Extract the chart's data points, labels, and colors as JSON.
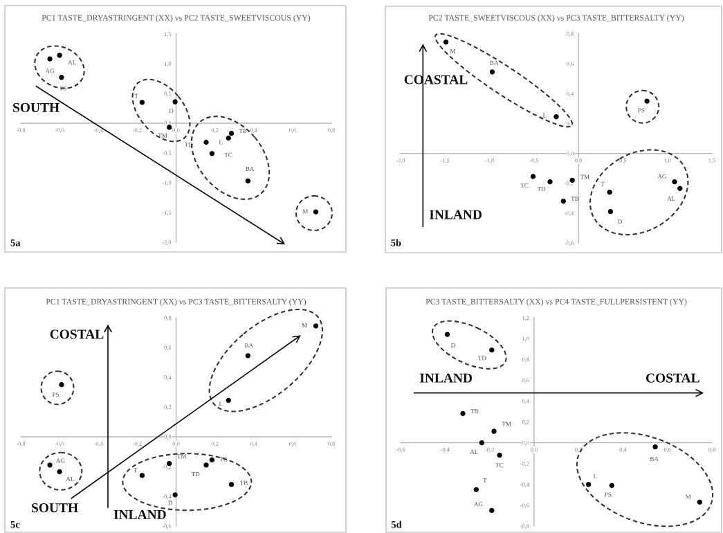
{
  "chart_data": [
    {
      "type": "scatter",
      "title": "PC1 TASTE_DRYASTRINGENT (XX) vs PC2 TASTE_SWEETVISCOUS (YY)",
      "marker": "circle",
      "xlim": [
        -0.8,
        0.8
      ],
      "xticks": [
        {
          "value": -0.8,
          "label": "-0,8"
        },
        {
          "value": -0.6,
          "label": "-0,6"
        },
        {
          "value": -0.4,
          "label": "-0,4"
        },
        {
          "value": -0.2,
          "label": "-0,2"
        },
        {
          "value": 0,
          "label": "0,0"
        },
        {
          "value": 0.2,
          "label": "0,2"
        },
        {
          "value": 0.4,
          "label": "0,4"
        },
        {
          "value": 0.6,
          "label": "0,6"
        },
        {
          "value": 0.8,
          "label": "0,8"
        }
      ],
      "ylim": [
        -2.0,
        1.5
      ],
      "yticks": [
        {
          "value": -2.0,
          "label": "-2,0"
        },
        {
          "value": -1.5,
          "label": "-1,5"
        },
        {
          "value": -1.0,
          "label": "-1,0"
        },
        {
          "value": -0.5,
          "label": "-0,5"
        },
        {
          "value": 0,
          "label": "0,0"
        },
        {
          "value": 0.5,
          "label": "0,5"
        },
        {
          "value": 1.0,
          "label": "1,0"
        },
        {
          "value": 1.5,
          "label": "1,5"
        }
      ],
      "series": [
        {
          "color": "#000000",
          "x": [
            -0.65,
            -0.6,
            -0.59,
            -0.175,
            -0.005,
            -0.035,
            0.285,
            0.27,
            0.155,
            0.185,
            0.37,
            0.72
          ],
          "values": [
            1.08,
            1.14,
            0.77,
            0.35,
            0.36,
            -0.07,
            -0.17,
            -0.25,
            -0.32,
            -0.51,
            -0.97,
            -1.49
          ]
        }
      ],
      "annotations": [
        {
          "text": "AG",
          "x": -0.65,
          "y": 1.08
        },
        {
          "text": "AL",
          "x": -0.6,
          "y": 1.14
        },
        {
          "text": "PS",
          "x": -0.59,
          "y": 0.77
        },
        {
          "text": "T",
          "x": -0.175,
          "y": 0.35
        },
        {
          "text": "D",
          "x": -0.005,
          "y": 0.36
        },
        {
          "text": "TM",
          "x": -0.035,
          "y": -0.07
        },
        {
          "text": "TB",
          "x": 0.285,
          "y": -0.17
        },
        {
          "text": "L",
          "x": 0.27,
          "y": -0.25
        },
        {
          "text": "TD",
          "x": 0.155,
          "y": -0.32
        },
        {
          "text": "TC",
          "x": 0.185,
          "y": -0.51
        },
        {
          "text": "BA",
          "x": 0.37,
          "y": -0.97
        },
        {
          "text": "M",
          "x": 0.72,
          "y": -1.49
        },
        "SOUTH",
        "5a"
      ]
    },
    {
      "type": "scatter",
      "title": "PC2 TASTE_SWEETVISCOUS (XX) vs PC3 TASTE_BITTERSALTY (YY)",
      "marker": "circle",
      "xlim": [
        -2.0,
        1.5
      ],
      "xticks": [
        {
          "value": -2.0,
          "label": "-2,0"
        },
        {
          "value": -1.5,
          "label": "-1,5"
        },
        {
          "value": -1.0,
          "label": "-1,0"
        },
        {
          "value": -0.5,
          "label": "-0,5"
        },
        {
          "value": 0,
          "label": "0,0"
        },
        {
          "value": 0.5,
          "label": "0,5"
        },
        {
          "value": 1.0,
          "label": "1,0"
        },
        {
          "value": 1.5,
          "label": "1,5"
        }
      ],
      "ylim": [
        -0.6,
        0.8
      ],
      "yticks": [
        {
          "value": -0.6,
          "label": "-0,6"
        },
        {
          "value": -0.4,
          "label": "-0,4"
        },
        {
          "value": -0.2,
          "label": "-0,2"
        },
        {
          "value": 0,
          "label": "0,0"
        },
        {
          "value": 0.2,
          "label": "0,2"
        },
        {
          "value": 0.4,
          "label": "0,4"
        },
        {
          "value": 0.6,
          "label": "0,6"
        },
        {
          "value": 0.8,
          "label": "0,8"
        }
      ],
      "series": [
        {
          "color": "#000000",
          "x": [
            1.08,
            1.14,
            0.77,
            0.35,
            0.36,
            -0.07,
            -0.17,
            -0.25,
            -0.32,
            -0.51,
            -0.97,
            -1.49
          ],
          "values": [
            -0.19,
            -0.235,
            0.35,
            -0.26,
            -0.39,
            -0.18,
            -0.32,
            0.245,
            -0.19,
            -0.155,
            0.545,
            0.745
          ]
        }
      ],
      "annotations": [
        {
          "text": "AG",
          "x": 1.08,
          "y": -0.19
        },
        {
          "text": "AL",
          "x": 1.14,
          "y": -0.235
        },
        {
          "text": "PS",
          "x": 0.77,
          "y": 0.35
        },
        {
          "text": "T",
          "x": 0.35,
          "y": -0.26
        },
        {
          "text": "D",
          "x": 0.36,
          "y": -0.39
        },
        {
          "text": "TM",
          "x": -0.07,
          "y": -0.18
        },
        {
          "text": "TB",
          "x": -0.17,
          "y": -0.32
        },
        {
          "text": "L",
          "x": -0.25,
          "y": 0.245
        },
        {
          "text": "TD",
          "x": -0.32,
          "y": -0.19
        },
        {
          "text": "TC",
          "x": -0.51,
          "y": -0.155
        },
        {
          "text": "BA",
          "x": -0.97,
          "y": 0.545
        },
        {
          "text": "M",
          "x": -1.49,
          "y": 0.745
        },
        "COASTAL",
        "INLAND",
        "5b"
      ]
    },
    {
      "type": "scatter",
      "title": "PC1 TASTE_DRYASTRINGENT (XX) vs PC3 TASTE_BITTERSALTY (YY)",
      "marker": "circle",
      "xlim": [
        -0.8,
        0.8
      ],
      "xticks": [
        {
          "value": -0.8,
          "label": "-0,8"
        },
        {
          "value": -0.6,
          "label": "-0,6"
        },
        {
          "value": -0.4,
          "label": "-0,4"
        },
        {
          "value": -0.2,
          "label": "-0,2"
        },
        {
          "value": 0,
          "label": "0,0"
        },
        {
          "value": 0.2,
          "label": "0,2"
        },
        {
          "value": 0.4,
          "label": "0,4"
        },
        {
          "value": 0.6,
          "label": "0,6"
        },
        {
          "value": 0.8,
          "label": "0,8"
        }
      ],
      "ylim": [
        -0.6,
        0.8
      ],
      "yticks": [
        {
          "value": -0.6,
          "label": "-0,6"
        },
        {
          "value": -0.4,
          "label": "-0,4"
        },
        {
          "value": -0.2,
          "label": "-0,2"
        },
        {
          "value": 0,
          "label": "0,0"
        },
        {
          "value": 0.2,
          "label": "0,2"
        },
        {
          "value": 0.4,
          "label": "0,4"
        },
        {
          "value": 0.6,
          "label": "0,6"
        },
        {
          "value": 0.8,
          "label": "0,8"
        }
      ],
      "series": [
        {
          "color": "#000000",
          "x": [
            -0.65,
            -0.6,
            -0.59,
            -0.175,
            -0.005,
            -0.035,
            0.285,
            0.27,
            0.155,
            0.185,
            0.37,
            0.72
          ],
          "values": [
            -0.19,
            -0.235,
            0.35,
            -0.26,
            -0.39,
            -0.18,
            -0.32,
            0.245,
            -0.19,
            -0.155,
            0.545,
            0.745
          ]
        }
      ],
      "annotations": [
        {
          "text": "AG",
          "x": -0.65,
          "y": -0.19
        },
        {
          "text": "AL",
          "x": -0.6,
          "y": -0.235
        },
        {
          "text": "PS",
          "x": -0.59,
          "y": 0.35
        },
        {
          "text": "T",
          "x": -0.175,
          "y": -0.26
        },
        {
          "text": "D",
          "x": -0.005,
          "y": -0.39
        },
        {
          "text": "TM",
          "x": -0.035,
          "y": -0.18
        },
        {
          "text": "TB",
          "x": 0.285,
          "y": -0.32
        },
        {
          "text": "L",
          "x": 0.27,
          "y": 0.245
        },
        {
          "text": "TD",
          "x": 0.155,
          "y": -0.19
        },
        {
          "text": "TC",
          "x": 0.185,
          "y": -0.155
        },
        {
          "text": "BA",
          "x": 0.37,
          "y": 0.545
        },
        {
          "text": "M",
          "x": 0.72,
          "y": 0.745
        },
        "COSTAL",
        "SOUTH",
        "INLAND",
        "5c"
      ]
    },
    {
      "type": "scatter",
      "title": "PC3 TASTE_BITTERSALTY (XX) vs PC4 TASTE_FULLPERSISTENT (YY)",
      "marker": "circle",
      "xlim": [
        -0.6,
        0.8
      ],
      "xticks": [
        {
          "value": -0.6,
          "label": "-0,6"
        },
        {
          "value": -0.4,
          "label": "-0,4"
        },
        {
          "value": -0.2,
          "label": "-0,2"
        },
        {
          "value": 0,
          "label": "0,0"
        },
        {
          "value": 0.2,
          "label": "0,2"
        },
        {
          "value": 0.4,
          "label": "0,4"
        },
        {
          "value": 0.6,
          "label": "0,6"
        },
        {
          "value": 0.8,
          "label": "0,8"
        }
      ],
      "ylim": [
        -0.8,
        1.2
      ],
      "yticks": [
        {
          "value": -0.8,
          "label": "-0,8"
        },
        {
          "value": -0.6,
          "label": "-0,6"
        },
        {
          "value": -0.4,
          "label": "-0,4"
        },
        {
          "value": -0.2,
          "label": "-0,2"
        },
        {
          "value": 0,
          "label": "0,0"
        },
        {
          "value": 0.2,
          "label": "0,2"
        },
        {
          "value": 0.4,
          "label": "0,4"
        },
        {
          "value": 0.6,
          "label": "0,6"
        },
        {
          "value": 0.8,
          "label": "0,8"
        },
        {
          "value": 1.0,
          "label": "1,0"
        },
        {
          "value": 1.2,
          "label": "1,2"
        }
      ],
      "series": [
        {
          "color": "#000000",
          "x": [
            -0.19,
            -0.235,
            0.35,
            -0.26,
            -0.39,
            -0.18,
            -0.32,
            0.245,
            -0.19,
            -0.155,
            0.545,
            0.745
          ],
          "values": [
            -0.65,
            0.0,
            -0.41,
            -0.45,
            1.04,
            0.11,
            0.28,
            -0.4,
            0.89,
            -0.12,
            -0.04,
            -0.57
          ]
        }
      ],
      "annotations": [
        {
          "text": "AG",
          "x": -0.19,
          "y": -0.65
        },
        {
          "text": "AL",
          "x": -0.235,
          "y": 0.0
        },
        {
          "text": "PS",
          "x": 0.35,
          "y": -0.41
        },
        {
          "text": "T",
          "x": -0.26,
          "y": -0.45
        },
        {
          "text": "D",
          "x": -0.39,
          "y": 1.04
        },
        {
          "text": "TM",
          "x": -0.18,
          "y": 0.11
        },
        {
          "text": "TB",
          "x": -0.32,
          "y": 0.28
        },
        {
          "text": "L",
          "x": 0.245,
          "y": -0.4
        },
        {
          "text": "TD",
          "x": -0.19,
          "y": 0.89
        },
        {
          "text": "TC",
          "x": -0.155,
          "y": -0.12
        },
        {
          "text": "BA",
          "x": 0.545,
          "y": -0.04
        },
        {
          "text": "M",
          "x": 0.745,
          "y": -0.57
        },
        "INLAND",
        "COSTAL",
        "5d"
      ]
    }
  ]
}
